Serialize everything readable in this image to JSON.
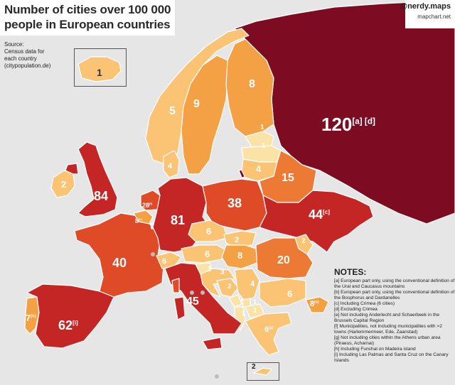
{
  "title_line1": "Number of cities over 100 000",
  "title_line2": "people in European countries",
  "handle": "@nerdy.maps",
  "site": "mapchart.net",
  "source": [
    "Source:",
    "Census data for",
    "each country",
    "(citypopulation.de)"
  ],
  "colors": {
    "1": "#fbe3a8",
    "2_5": "#fbc374",
    "6_9": "#f4a045",
    "10_20": "#ec7a35",
    "21_40": "#df4a27",
    "41_100": "#c42626",
    "over_100": "#7d0b22",
    "sea": "#e6e6e6"
  },
  "countries": [
    {
      "name": "Russia",
      "value": 120,
      "label": "120",
      "note": "[a] [d]"
    },
    {
      "name": "United Kingdom",
      "value": 84,
      "label": "84"
    },
    {
      "name": "Germany",
      "value": 81,
      "label": "81"
    },
    {
      "name": "Spain",
      "value": 62,
      "label": "62",
      "note": "[i]"
    },
    {
      "name": "Italy",
      "value": 45,
      "label": "45"
    },
    {
      "name": "Ukraine",
      "value": 44,
      "label": "44",
      "note": "[c]"
    },
    {
      "name": "France",
      "value": 40,
      "label": "40"
    },
    {
      "name": "Poland",
      "value": 38,
      "label": "38"
    },
    {
      "name": "Netherlands",
      "value": 28,
      "label": "28",
      "note": "[f]"
    },
    {
      "name": "Romania",
      "value": 20,
      "label": "20"
    },
    {
      "name": "Belarus",
      "value": 15,
      "label": "15"
    },
    {
      "name": "Sweden",
      "value": 9,
      "label": "9"
    },
    {
      "name": "Belgium",
      "value": 8,
      "label": "8",
      "note": "[e]"
    },
    {
      "name": "Turkey (European part)",
      "value": 8,
      "label": "8",
      "note": "[b]"
    },
    {
      "name": "Hungary",
      "value": 8,
      "label": "8"
    },
    {
      "name": "Norway",
      "value": 5,
      "label": "5"
    },
    {
      "name": "Finland",
      "value": 8,
      "label": "8"
    },
    {
      "name": "Portugal",
      "value": 7,
      "label": "7",
      "note": "[h]"
    },
    {
      "name": "Switzerland",
      "value": 6,
      "label": "6"
    },
    {
      "name": "Czech Republic",
      "value": 6,
      "label": "6"
    },
    {
      "name": "Austria",
      "value": 6,
      "label": "6"
    },
    {
      "name": "Bulgaria",
      "value": 6,
      "label": "6"
    },
    {
      "name": "Greece",
      "value": 6,
      "label": "6",
      "note": "[g]"
    },
    {
      "name": "Denmark",
      "value": 4,
      "label": "4"
    },
    {
      "name": "Lithuania",
      "value": 4,
      "label": "4"
    },
    {
      "name": "Serbia",
      "value": 4,
      "label": "4"
    },
    {
      "name": "Slovakia",
      "value": 2,
      "label": "2"
    },
    {
      "name": "Ireland",
      "value": 2,
      "label": "2"
    },
    {
      "name": "Moldova",
      "value": 2,
      "label": "2"
    },
    {
      "name": "Bosnia and Herzegovina",
      "value": 2,
      "label": "2"
    },
    {
      "name": "North Macedonia",
      "value": 1,
      "label": "1"
    },
    {
      "name": "Cyprus",
      "value": 2,
      "label": "2"
    },
    {
      "name": "Croatia",
      "value": 3,
      "label": "3"
    },
    {
      "name": "Slovenia",
      "value": 1,
      "label": "1"
    },
    {
      "name": "Montenegro",
      "value": 1,
      "label": "1"
    },
    {
      "name": "Kosovo",
      "value": 1,
      "label": "1"
    },
    {
      "name": "Albania",
      "value": 1,
      "label": "1"
    },
    {
      "name": "Latvia",
      "value": 1,
      "label": "1"
    },
    {
      "name": "Estonia",
      "value": 1,
      "label": "1"
    },
    {
      "name": "Iceland",
      "value": 1,
      "label": "1"
    }
  ],
  "notes_title": "NOTES:",
  "notes": [
    "[a] European part only, using the conventional definition of the Ural and Caucasus mountains",
    "[b] European part only, using the conventional definition of the Bosphorus and Dardanelles",
    "[c] Including Crimea (6 cities)",
    "[d] Excluding Crimea",
    "[e] Not including Anderlecht and Schaerbeek in the Brussels Capital Region",
    "[f] Municipalities, not including municipalities with >2 towns (Harlemmermeer, Ede, Zaanstad)",
    "[g] Not including cities within the Athens urban area (Piraeus, Acharnai)",
    "[h] Including Funchal on Madeira island",
    "[i] Including Las Palmas and Santa Cruz on the Canary Islands"
  ]
}
